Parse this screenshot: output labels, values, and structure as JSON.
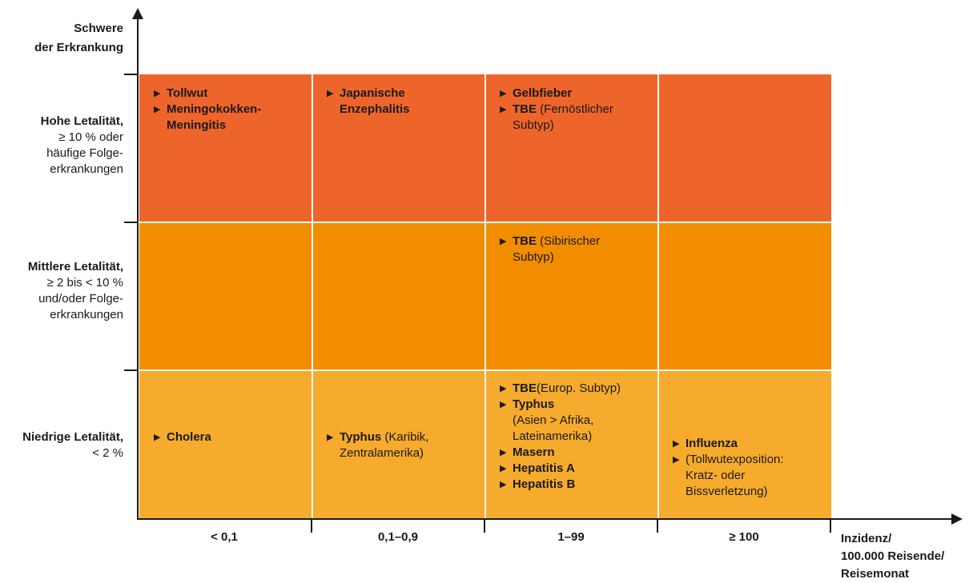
{
  "y_axis_title": [
    "Schwere",
    "der Erkrankung"
  ],
  "x_axis_title": [
    "Inzidenz/",
    "100.000 Reisende/",
    "Reisemonat"
  ],
  "rows": [
    {
      "main": "Hohe Letalität,",
      "sub": [
        "≥ 10 % oder",
        "häufige Folge-",
        "erkrankungen"
      ],
      "color": "#ee652c"
    },
    {
      "main": "Mittlere Letalität,",
      "sub": [
        "≥ 2 bis < 10 %",
        "und/oder Folge-",
        "erkrankungen"
      ],
      "color": "#f28d00"
    },
    {
      "main": "Niedrige Letalität,",
      "sub": [
        "< 2 %"
      ],
      "color": "#f6ab2d"
    }
  ],
  "columns": [
    "< 0,1",
    "0,1–0,9",
    "1–99",
    "≥ 100"
  ],
  "cells": {
    "high_c1": [
      {
        "bold": "Tollwut",
        "rest": ""
      },
      {
        "bold": "Meningokokken-\nMeningitis",
        "rest": ""
      }
    ],
    "high_c2": [
      {
        "bold": "Japanische\nEnzephalitis",
        "rest": ""
      }
    ],
    "high_c3": [
      {
        "bold": "Gelbfieber",
        "rest": ""
      },
      {
        "bold": "TBE",
        "rest": " (Fernöstlicher\nSubtyp)"
      }
    ],
    "mid_c3": [
      {
        "bold": "TBE",
        "rest": " (Sibirischer\nSubtyp)"
      }
    ],
    "low_c1": [
      {
        "bold": "Cholera",
        "rest": ""
      }
    ],
    "low_c2": [
      {
        "bold": "Typhus",
        "rest": " (Karibik,\nZentralamerika)"
      }
    ],
    "low_c3": [
      {
        "bold": "TBE",
        "rest": "(Europ. Subtyp)"
      },
      {
        "bold": "Typhus",
        "rest": "\n(Asien > Afrika,\nLateinamerika)"
      },
      {
        "bold": "Masern",
        "rest": ""
      },
      {
        "bold": "Hepatitis A",
        "rest": ""
      },
      {
        "bold": "Hepatitis B",
        "rest": ""
      }
    ],
    "low_c4": [
      {
        "bold": "Influenza",
        "rest": ""
      },
      {
        "bold": "",
        "rest": "(Tollwutexposition:\nKratz- oder\nBissverletzung)"
      }
    ]
  },
  "bullet_glyph": "▶"
}
